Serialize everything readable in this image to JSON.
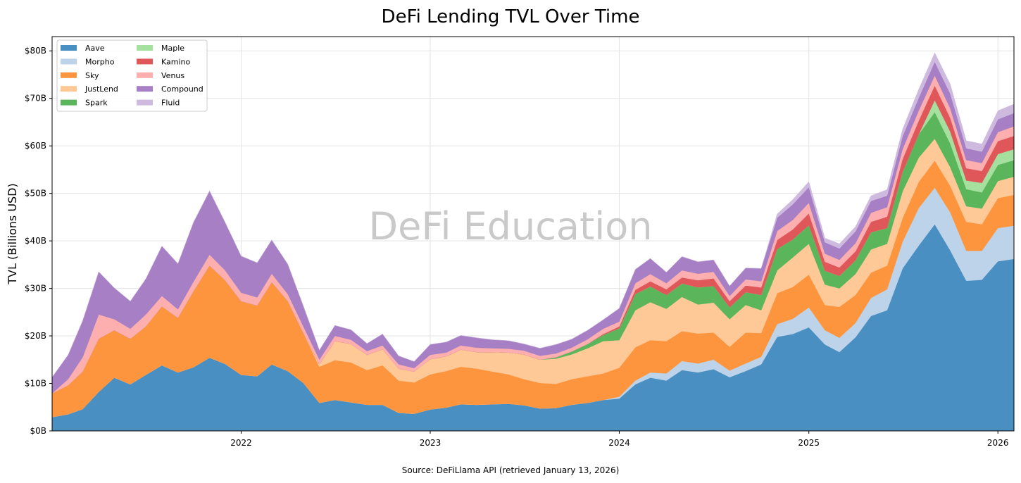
{
  "chart_data": {
    "type": "area",
    "title": "DeFi Lending TVL Over Time",
    "xlabel": "",
    "ylabel": "TVL (Billions USD)",
    "watermark": "DeFi Education",
    "source": "Source: DeFiLlama API (retrieved January 13, 2026)",
    "stacked": true,
    "grid": true,
    "legend_position": "top-left",
    "legend_columns": 2,
    "ylim": [
      0,
      83
    ],
    "xlim": [
      "2021-01-01",
      "2026-02-01"
    ],
    "y_ticks": [
      0,
      10,
      20,
      30,
      40,
      50,
      60,
      70,
      80
    ],
    "y_tick_labels": [
      "$0B",
      "$10B",
      "$20B",
      "$30B",
      "$40B",
      "$50B",
      "$60B",
      "$70B",
      "$80B"
    ],
    "x_ticks": [
      "2022-01-01",
      "2023-01-01",
      "2024-01-01",
      "2025-01-01",
      "2026-01-01"
    ],
    "x_tick_labels": [
      "2022",
      "2023",
      "2024",
      "2025",
      "2026"
    ],
    "dates": [
      "2021-01-01",
      "2021-02-01",
      "2021-03-01",
      "2021-04-01",
      "2021-05-01",
      "2021-06-01",
      "2021-07-01",
      "2021-08-01",
      "2021-09-01",
      "2021-10-01",
      "2021-11-01",
      "2021-12-01",
      "2022-01-01",
      "2022-02-01",
      "2022-03-01",
      "2022-04-01",
      "2022-05-01",
      "2022-06-01",
      "2022-07-01",
      "2022-08-01",
      "2022-09-01",
      "2022-10-01",
      "2022-11-01",
      "2022-12-01",
      "2023-01-01",
      "2023-02-01",
      "2023-03-01",
      "2023-04-01",
      "2023-05-01",
      "2023-06-01",
      "2023-07-01",
      "2023-08-01",
      "2023-09-01",
      "2023-10-01",
      "2023-11-01",
      "2023-12-01",
      "2024-01-01",
      "2024-02-01",
      "2024-03-01",
      "2024-04-01",
      "2024-05-01",
      "2024-06-01",
      "2024-07-01",
      "2024-08-01",
      "2024-09-01",
      "2024-10-01",
      "2024-11-01",
      "2024-12-01",
      "2025-01-01",
      "2025-02-01",
      "2025-03-01",
      "2025-04-01",
      "2025-05-01",
      "2025-06-01",
      "2025-07-01",
      "2025-08-01",
      "2025-09-01",
      "2025-10-01",
      "2025-11-01",
      "2025-12-01",
      "2026-01-01",
      "2026-02-01"
    ],
    "series": [
      {
        "name": "Aave",
        "color": "#4a8fc2",
        "values": [
          2.9,
          3.5,
          4.6,
          8.2,
          11.2,
          9.8,
          11.8,
          13.8,
          12.3,
          13.4,
          15.4,
          14.1,
          11.8,
          11.5,
          14.0,
          12.6,
          10.1,
          5.9,
          6.5,
          6.0,
          5.5,
          5.5,
          3.8,
          3.6,
          4.5,
          4.9,
          5.6,
          5.5,
          5.6,
          5.7,
          5.4,
          4.7,
          4.8,
          5.5,
          5.9,
          6.5,
          6.8,
          9.8,
          11.2,
          10.6,
          12.8,
          12.3,
          13.0,
          11.3,
          12.6,
          14.0,
          19.8,
          20.4,
          21.8,
          18.2,
          16.6,
          19.7,
          24.2,
          25.4,
          34.2,
          39.0,
          43.5,
          38.0,
          31.6,
          31.8,
          35.7,
          36.2
        ]
      },
      {
        "name": "Morpho",
        "color": "#bdd3ea",
        "values": [
          0,
          0,
          0,
          0,
          0,
          0,
          0,
          0,
          0,
          0,
          0,
          0,
          0,
          0,
          0,
          0,
          0,
          0,
          0,
          0,
          0,
          0,
          0,
          0,
          0,
          0,
          0,
          0,
          0,
          0,
          0,
          0,
          0,
          0,
          0,
          0,
          0.4,
          0.8,
          1.1,
          1.5,
          1.9,
          1.9,
          2.0,
          1.4,
          1.6,
          1.6,
          2.7,
          3.2,
          4.2,
          3.0,
          3.0,
          3.0,
          3.8,
          4.4,
          5.6,
          7.9,
          7.7,
          8.0,
          6.3,
          6.1,
          7.0,
          7.0
        ]
      },
      {
        "name": "Sky",
        "color": "#fd953e",
        "values": [
          5.0,
          6.1,
          7.9,
          11.2,
          10.0,
          9.6,
          10.2,
          12.4,
          11.5,
          16.0,
          19.4,
          17.6,
          15.5,
          14.9,
          17.3,
          14.7,
          10.5,
          7.6,
          8.4,
          8.4,
          7.3,
          8.3,
          6.8,
          6.6,
          7.4,
          7.7,
          7.9,
          7.6,
          6.9,
          6.2,
          5.5,
          5.4,
          5.1,
          5.4,
          5.6,
          5.6,
          6.1,
          7.0,
          6.8,
          6.8,
          6.3,
          6.3,
          5.7,
          5.0,
          6.5,
          5.0,
          6.5,
          6.7,
          6.9,
          5.3,
          6.5,
          5.9,
          5.3,
          5.0,
          5.0,
          5.5,
          5.7,
          5.6,
          6.1,
          5.6,
          6.3,
          6.5
        ]
      },
      {
        "name": "JustLend",
        "color": "#ffc997",
        "values": [
          0,
          0,
          0,
          0,
          0,
          0,
          0,
          0,
          0,
          0,
          0,
          0,
          0,
          0,
          0,
          0,
          0,
          0.5,
          4.0,
          3.9,
          3.2,
          3.4,
          2.5,
          2.3,
          3.2,
          3.1,
          3.6,
          3.5,
          4.1,
          4.6,
          5.2,
          4.9,
          5.3,
          5.2,
          5.9,
          6.8,
          5.8,
          7.8,
          8.0,
          6.8,
          7.2,
          6.1,
          6.3,
          5.8,
          5.8,
          4.8,
          4.8,
          6.2,
          6.5,
          4.3,
          3.9,
          4.4,
          4.9,
          4.6,
          5.6,
          5.1,
          4.6,
          3.9,
          3.3,
          3.3,
          3.6,
          3.8
        ]
      },
      {
        "name": "Spark",
        "color": "#5bb55b",
        "values": [
          0,
          0,
          0,
          0,
          0,
          0,
          0,
          0,
          0,
          0,
          0,
          0,
          0,
          0,
          0,
          0,
          0,
          0,
          0,
          0,
          0,
          0,
          0,
          0,
          0,
          0,
          0,
          0,
          0,
          0,
          0,
          0,
          0.3,
          0.6,
          0.9,
          1.3,
          2.5,
          3.4,
          3.3,
          2.9,
          2.8,
          3.6,
          3.5,
          2.5,
          2.7,
          3.2,
          4.5,
          3.8,
          3.9,
          2.9,
          2.6,
          2.9,
          3.6,
          3.3,
          4.1,
          4.9,
          5.6,
          5.0,
          3.6,
          3.4,
          3.4,
          3.5
        ]
      },
      {
        "name": "Maple",
        "color": "#a6e09e",
        "values": [
          0,
          0,
          0,
          0,
          0,
          0,
          0,
          0,
          0,
          0,
          0,
          0,
          0,
          0,
          0,
          0,
          0,
          0,
          0,
          0,
          0,
          0,
          0,
          0,
          0,
          0,
          0,
          0,
          0,
          0,
          0,
          0,
          0,
          0,
          0,
          0,
          0,
          0,
          0,
          0,
          0,
          0,
          0,
          0,
          0,
          0,
          0,
          0,
          0,
          0,
          0,
          0,
          0,
          0,
          0,
          0,
          2.5,
          2.5,
          1.8,
          2.0,
          2.3,
          2.3
        ]
      },
      {
        "name": "Kamino",
        "color": "#e0575a",
        "values": [
          0,
          0,
          0,
          0,
          0,
          0,
          0,
          0,
          0,
          0,
          0,
          0,
          0,
          0,
          0,
          0,
          0,
          0,
          0,
          0,
          0,
          0,
          0,
          0,
          0,
          0,
          0,
          0,
          0,
          0,
          0,
          0,
          0,
          0,
          0,
          0.2,
          0.4,
          0.9,
          1.1,
          1.2,
          1.3,
          1.5,
          1.6,
          1.3,
          1.4,
          1.6,
          1.9,
          2.1,
          2.5,
          1.9,
          1.8,
          1.9,
          2.2,
          2.4,
          2.7,
          2.9,
          3.1,
          2.9,
          2.6,
          2.5,
          2.7,
          2.8
        ]
      },
      {
        "name": "Venus",
        "color": "#fdaeae",
        "values": [
          0,
          1.3,
          3.0,
          5.1,
          2.3,
          2.1,
          2.5,
          2.2,
          1.8,
          2.0,
          2.3,
          2.1,
          1.8,
          1.7,
          1.8,
          1.5,
          1.4,
          1.0,
          1.1,
          0.9,
          0.8,
          0.8,
          0.9,
          0.7,
          0.9,
          0.8,
          0.9,
          0.9,
          0.8,
          0.8,
          0.8,
          0.8,
          0.8,
          0.8,
          1.0,
          1.1,
          1.0,
          1.4,
          1.5,
          1.3,
          1.5,
          1.4,
          1.4,
          1.1,
          1.3,
          1.3,
          1.9,
          2.0,
          2.2,
          1.7,
          1.6,
          1.7,
          1.9,
          2.0,
          2.1,
          2.1,
          2.1,
          2.0,
          1.7,
          1.7,
          1.9,
          2.0
        ]
      },
      {
        "name": "Compound",
        "color": "#a67fc4",
        "values": [
          3.4,
          5.1,
          7.7,
          9.0,
          6.6,
          5.8,
          7.5,
          10.5,
          9.6,
          12.5,
          13.4,
          10.1,
          7.7,
          7.3,
          7.1,
          6.3,
          4.3,
          2.0,
          2.2,
          2.1,
          1.6,
          2.4,
          1.8,
          1.4,
          2.2,
          2.2,
          2.1,
          2.1,
          1.8,
          1.7,
          1.4,
          1.6,
          1.9,
          1.8,
          1.9,
          1.9,
          2.8,
          2.9,
          3.3,
          2.3,
          2.9,
          2.5,
          2.5,
          2.1,
          2.4,
          2.7,
          2.8,
          3.3,
          3.3,
          2.4,
          2.4,
          2.5,
          2.5,
          2.4,
          2.7,
          2.7,
          2.9,
          3.1,
          2.5,
          2.4,
          2.7,
          2.8
        ]
      },
      {
        "name": "Fluid",
        "color": "#cfbadf",
        "values": [
          0,
          0,
          0,
          0,
          0,
          0,
          0,
          0,
          0,
          0,
          0,
          0,
          0,
          0,
          0,
          0,
          0,
          0,
          0,
          0,
          0,
          0,
          0,
          0,
          0,
          0,
          0,
          0,
          0,
          0,
          0,
          0,
          0,
          0,
          0,
          0,
          0,
          0,
          0,
          0,
          0,
          0,
          0,
          0,
          0,
          0,
          0.8,
          1.0,
          1.2,
          0.9,
          1.0,
          1.0,
          1.1,
          1.3,
          1.5,
          1.8,
          1.9,
          2.0,
          1.6,
          1.6,
          1.8,
          1.9
        ]
      }
    ]
  }
}
